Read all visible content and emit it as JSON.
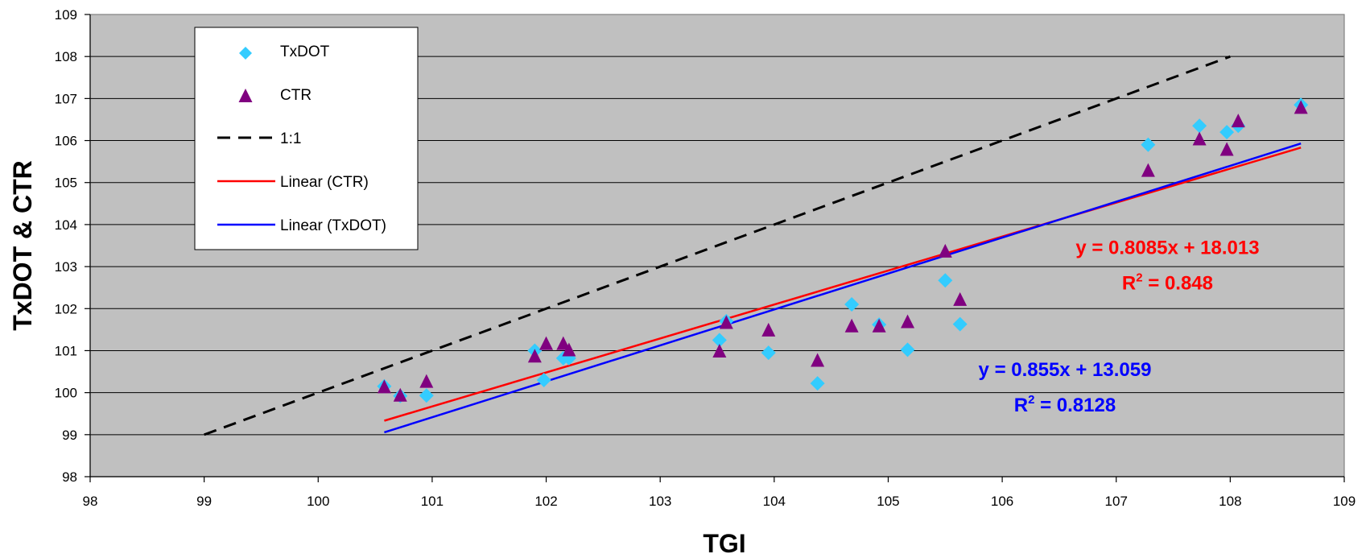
{
  "chart_data": {
    "type": "scatter",
    "xlabel": "TGI",
    "ylabel": "TxDOT & CTR",
    "xlim": [
      98,
      109
    ],
    "ylim": [
      98,
      109
    ],
    "xticks": [
      98,
      99,
      100,
      101,
      102,
      103,
      104,
      105,
      106,
      107,
      108,
      109
    ],
    "yticks": [
      98,
      99,
      100,
      101,
      102,
      103,
      104,
      105,
      106,
      107,
      108,
      109
    ],
    "grid": "horizontal",
    "legend_position": "top-left",
    "background_color": "#c0c0c0",
    "series": [
      {
        "name": "TxDOT",
        "kind": "scatter",
        "marker": "diamond",
        "color": "#33ccff",
        "points": [
          [
            100.58,
            100.15
          ],
          [
            100.72,
            99.92
          ],
          [
            100.95,
            99.93
          ],
          [
            101.9,
            101.0
          ],
          [
            101.98,
            100.3
          ],
          [
            102.15,
            100.82
          ],
          [
            102.2,
            100.82
          ],
          [
            103.52,
            101.25
          ],
          [
            103.58,
            101.7
          ],
          [
            103.95,
            100.95
          ],
          [
            104.38,
            100.22
          ],
          [
            104.68,
            102.1
          ],
          [
            104.92,
            101.62
          ],
          [
            105.17,
            101.02
          ],
          [
            105.5,
            102.67
          ],
          [
            105.63,
            101.63
          ],
          [
            107.28,
            105.9
          ],
          [
            107.73,
            106.35
          ],
          [
            107.97,
            106.2
          ],
          [
            108.07,
            106.35
          ],
          [
            108.62,
            106.85
          ]
        ]
      },
      {
        "name": "CTR",
        "kind": "scatter",
        "marker": "triangle",
        "color": "#800080",
        "points": [
          [
            100.58,
            100.12
          ],
          [
            100.72,
            99.92
          ],
          [
            100.95,
            100.25
          ],
          [
            101.9,
            100.85
          ],
          [
            102.0,
            101.15
          ],
          [
            102.15,
            101.15
          ],
          [
            102.2,
            101.0
          ],
          [
            103.52,
            100.97
          ],
          [
            103.58,
            101.65
          ],
          [
            103.95,
            101.47
          ],
          [
            104.38,
            100.75
          ],
          [
            104.68,
            101.57
          ],
          [
            104.92,
            101.57
          ],
          [
            105.17,
            101.67
          ],
          [
            105.5,
            103.35
          ],
          [
            105.63,
            102.2
          ],
          [
            107.28,
            105.27
          ],
          [
            107.73,
            106.02
          ],
          [
            107.97,
            105.77
          ],
          [
            108.07,
            106.45
          ],
          [
            108.62,
            106.77
          ]
        ]
      },
      {
        "name": "1:1",
        "kind": "line",
        "style": "dashed",
        "color": "#000000",
        "points": [
          [
            99,
            99
          ],
          [
            108,
            108
          ]
        ]
      },
      {
        "name": "Linear (CTR)",
        "kind": "line",
        "style": "solid",
        "color": "#ff0000",
        "slope": 0.8085,
        "intercept": 18.013,
        "x_range": [
          100.58,
          108.62
        ]
      },
      {
        "name": "Linear (TxDOT)",
        "kind": "line",
        "style": "solid",
        "color": "#0000ff",
        "slope": 0.855,
        "intercept": 13.059,
        "x_range": [
          100.58,
          108.62
        ]
      }
    ],
    "annotations": [
      {
        "equation": "y = 0.8085x + 18.013",
        "r_base": "R",
        "r_sup": "2",
        "r_value": " = 0.848",
        "color": "#ff0000",
        "at": [
          107.45,
          103.3
        ]
      },
      {
        "equation": "y = 0.855x + 13.059",
        "r_base": "R",
        "r_sup": "2",
        "r_value": " = 0.8128",
        "color": "#0000ff",
        "at": [
          106.55,
          100.4
        ]
      }
    ]
  }
}
